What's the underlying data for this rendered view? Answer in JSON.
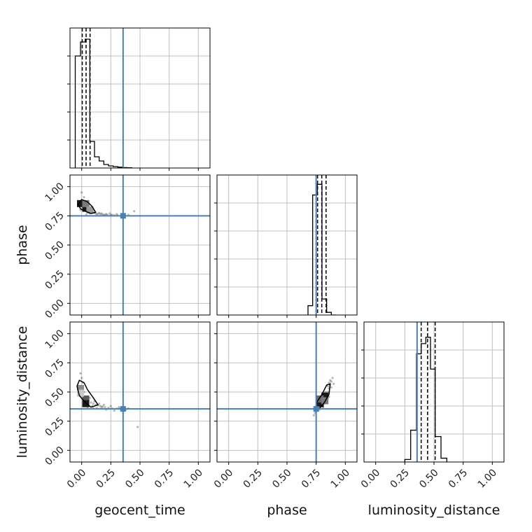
{
  "chart_data": {
    "type": "corner",
    "grid": true,
    "colors": {
      "truth": "#4682b4",
      "hist": "#000000",
      "grid": "#c0c0c0",
      "points": "#333333"
    },
    "parameters": [
      "geocent_time",
      "phase",
      "luminosity_distance"
    ],
    "axis_labels": {
      "x": [
        "geocent_time",
        "phase",
        "luminosity_distance"
      ],
      "y": [
        "",
        "phase",
        "luminosity_distance"
      ]
    },
    "xlim": [
      -0.1,
      1.1
    ],
    "ylim": [
      -0.1,
      1.1
    ],
    "ticks": [
      0.0,
      0.25,
      0.5,
      0.75,
      1.0
    ],
    "tick_labels": [
      "0.00",
      "0.25",
      "0.50",
      "0.75",
      "1.00"
    ],
    "truths": [
      0.355,
      0.75,
      0.355
    ],
    "quantiles": [
      [
        0.005,
        0.038,
        0.072
      ],
      [
        0.762,
        0.798,
        0.835
      ],
      [
        0.39,
        0.445,
        0.51
      ]
    ],
    "histograms": [
      {
        "param": "geocent_time",
        "bins": [
          -0.055,
          -0.01,
          0.03,
          0.07,
          0.11,
          0.15,
          0.19,
          0.23,
          0.27,
          0.31,
          0.35,
          0.39,
          0.43
        ],
        "counts": [
          0.8,
          0.9,
          0.92,
          0.19,
          0.08,
          0.05,
          0.025,
          0.015,
          0.01,
          0.006,
          0.003,
          0.002
        ],
        "ymax": 1.0
      },
      {
        "param": "phase",
        "bins": [
          0.68,
          0.72,
          0.76,
          0.8,
          0.84,
          0.88,
          0.92
        ],
        "counts": [
          0.07,
          0.9,
          0.98,
          0.12,
          0.02,
          0.0
        ],
        "ymax": 1.05
      },
      {
        "param": "luminosity_distance",
        "bins": [
          0.25,
          0.3,
          0.35,
          0.39,
          0.43,
          0.47,
          0.51,
          0.56,
          0.61
        ],
        "counts": [
          0.02,
          0.25,
          0.85,
          0.93,
          0.98,
          0.73,
          0.2,
          0.03
        ],
        "ymax": 1.1
      }
    ],
    "scatter_panels": [
      {
        "x_param": "geocent_time",
        "y_param": "phase",
        "points": [
          [
            -0.02,
            0.86
          ],
          [
            0.0,
            0.84
          ],
          [
            0.01,
            0.88
          ],
          [
            0.03,
            0.82
          ],
          [
            0.05,
            0.8
          ],
          [
            0.06,
            0.79
          ],
          [
            0.08,
            0.78
          ],
          [
            0.1,
            0.775
          ],
          [
            0.12,
            0.77
          ],
          [
            0.14,
            0.768
          ],
          [
            0.16,
            0.765
          ],
          [
            0.18,
            0.762
          ],
          [
            0.2,
            0.76
          ],
          [
            0.22,
            0.758
          ],
          [
            0.25,
            0.756
          ],
          [
            0.28,
            0.755
          ],
          [
            0.31,
            0.754
          ],
          [
            0.34,
            0.753
          ],
          [
            0.4,
            0.758
          ],
          [
            0.02,
            0.91
          ],
          [
            -0.01,
            0.8
          ],
          [
            0.04,
            0.83
          ],
          [
            0.07,
            0.77
          ],
          [
            0.09,
            0.79
          ],
          [
            0.11,
            0.78
          ],
          [
            0.13,
            0.762
          ],
          [
            0.15,
            0.775
          ],
          [
            0.17,
            0.77
          ],
          [
            0.21,
            0.765
          ],
          [
            0.24,
            0.77
          ],
          [
            0.0,
            0.95
          ],
          [
            0.03,
            0.87
          ],
          [
            0.06,
            0.84
          ],
          [
            0.1,
            0.8
          ],
          [
            0.19,
            0.755
          ],
          [
            0.26,
            0.76
          ],
          [
            0.3,
            0.765
          ],
          [
            0.36,
            0.76
          ],
          [
            0.45,
            0.79
          ],
          [
            0.04,
            0.76
          ]
        ],
        "contour": [
          [
            -0.03,
            0.85
          ],
          [
            0.0,
            0.89
          ],
          [
            0.05,
            0.87
          ],
          [
            0.09,
            0.83
          ],
          [
            0.12,
            0.78
          ],
          [
            0.08,
            0.77
          ],
          [
            0.03,
            0.79
          ],
          [
            -0.01,
            0.81
          ]
        ],
        "density": [
          [
            -0.01,
            0.855,
            "#1a1a1a"
          ],
          [
            0.035,
            0.815,
            "#1a1a1a"
          ],
          [
            0.035,
            0.855,
            "#7a7a7a"
          ],
          [
            0.07,
            0.8,
            "#9a9a9a"
          ]
        ]
      },
      {
        "x_param": "geocent_time",
        "y_param": "luminosity_distance",
        "points": [
          [
            -0.02,
            0.55
          ],
          [
            0.0,
            0.52
          ],
          [
            0.02,
            0.5
          ],
          [
            0.04,
            0.46
          ],
          [
            0.06,
            0.43
          ],
          [
            0.08,
            0.41
          ],
          [
            0.1,
            0.4
          ],
          [
            0.12,
            0.39
          ],
          [
            0.14,
            0.385
          ],
          [
            0.16,
            0.38
          ],
          [
            0.18,
            0.375
          ],
          [
            0.2,
            0.37
          ],
          [
            0.23,
            0.365
          ],
          [
            0.26,
            0.36
          ],
          [
            0.3,
            0.358
          ],
          [
            0.33,
            0.357
          ],
          [
            0.36,
            0.36
          ],
          [
            0.4,
            0.36
          ],
          [
            0.0,
            0.62
          ],
          [
            -0.01,
            0.66
          ],
          [
            0.01,
            0.58
          ],
          [
            0.03,
            0.4
          ],
          [
            0.05,
            0.37
          ],
          [
            0.07,
            0.45
          ],
          [
            0.09,
            0.38
          ],
          [
            0.11,
            0.42
          ],
          [
            0.13,
            0.36
          ],
          [
            0.15,
            0.4
          ],
          [
            0.17,
            0.37
          ],
          [
            0.21,
            0.35
          ],
          [
            0.25,
            0.38
          ],
          [
            0.28,
            0.34
          ],
          [
            0.32,
            0.37
          ],
          [
            0.38,
            0.35
          ],
          [
            0.48,
            0.2
          ],
          [
            -0.03,
            0.47
          ],
          [
            0.02,
            0.44
          ],
          [
            0.06,
            0.38
          ],
          [
            0.1,
            0.36
          ],
          [
            0.19,
            0.39
          ]
        ],
        "contour": [
          [
            -0.04,
            0.55
          ],
          [
            -0.02,
            0.6
          ],
          [
            0.02,
            0.58
          ],
          [
            0.05,
            0.52
          ],
          [
            0.1,
            0.45
          ],
          [
            0.14,
            0.39
          ],
          [
            0.08,
            0.37
          ],
          [
            0.03,
            0.41
          ],
          [
            -0.02,
            0.47
          ]
        ],
        "density": [
          [
            -0.01,
            0.53,
            "#8a8a8a"
          ],
          [
            0.035,
            0.44,
            "#5a5a5a"
          ],
          [
            0.035,
            0.4,
            "#1a1a1a"
          ],
          [
            -0.01,
            0.49,
            "#c8c8c8"
          ]
        ]
      },
      {
        "x_param": "phase",
        "y_param": "luminosity_distance",
        "points": [
          [
            0.74,
            0.32
          ],
          [
            0.75,
            0.34
          ],
          [
            0.76,
            0.36
          ],
          [
            0.78,
            0.38
          ],
          [
            0.8,
            0.41
          ],
          [
            0.82,
            0.44
          ],
          [
            0.84,
            0.47
          ],
          [
            0.85,
            0.5
          ],
          [
            0.86,
            0.53
          ],
          [
            0.87,
            0.56
          ],
          [
            0.88,
            0.59
          ],
          [
            0.89,
            0.62
          ],
          [
            0.76,
            0.39
          ],
          [
            0.78,
            0.35
          ],
          [
            0.79,
            0.43
          ],
          [
            0.81,
            0.37
          ],
          [
            0.83,
            0.5
          ],
          [
            0.84,
            0.42
          ],
          [
            0.86,
            0.46
          ],
          [
            0.87,
            0.6
          ],
          [
            0.77,
            0.41
          ],
          [
            0.8,
            0.46
          ],
          [
            0.82,
            0.4
          ],
          [
            0.85,
            0.55
          ],
          [
            0.88,
            0.54
          ],
          [
            0.9,
            0.57
          ],
          [
            0.73,
            0.3
          ],
          [
            0.75,
            0.37
          ],
          [
            0.81,
            0.49
          ],
          [
            0.86,
            0.58
          ]
        ],
        "contour": [
          [
            0.74,
            0.35
          ],
          [
            0.76,
            0.42
          ],
          [
            0.8,
            0.48
          ],
          [
            0.84,
            0.56
          ],
          [
            0.87,
            0.57
          ],
          [
            0.86,
            0.48
          ],
          [
            0.82,
            0.41
          ],
          [
            0.78,
            0.36
          ]
        ],
        "density": [
          [
            0.785,
            0.4,
            "#1a1a1a"
          ],
          [
            0.825,
            0.465,
            "#1a1a1a"
          ],
          [
            0.785,
            0.44,
            "#6a6a6a"
          ],
          [
            0.825,
            0.425,
            "#7a7a7a"
          ]
        ]
      }
    ]
  }
}
